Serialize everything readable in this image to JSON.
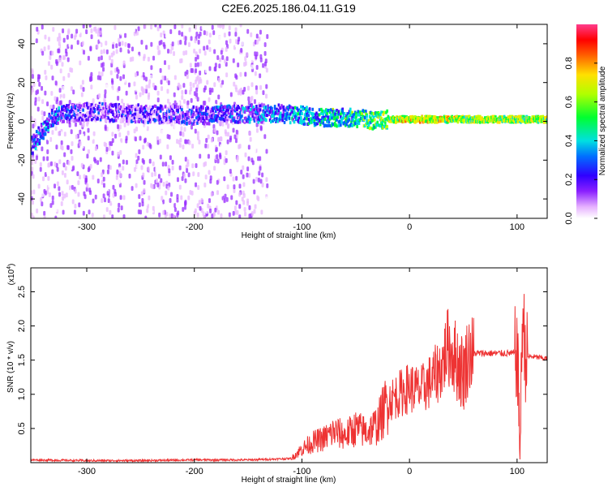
{
  "figure_title": "C2E6.2025.186.04.11.G19",
  "chart_data": [
    {
      "type": "heatmap",
      "title": "C2E6.2025.186.04.11.G19",
      "xlabel": "Height of straight line (km)",
      "ylabel": "Frequency (Hz)",
      "xlim": [
        -352,
        128
      ],
      "ylim": [
        -50,
        50
      ],
      "xticks": [
        -300,
        -200,
        -100,
        0,
        100
      ],
      "yticks": [
        -40,
        -20,
        0,
        20,
        40
      ],
      "colorbar": {
        "label": "Normalized spectral amplitude",
        "range": [
          0.0,
          1.0
        ],
        "ticks": [
          "0.0",
          "0.2",
          "0.4",
          "0.6",
          "0.8"
        ],
        "colormap": [
          "#ffffff",
          "#e8b8ff",
          "#9a30ff",
          "#4000ff",
          "#0060ff",
          "#00e0e0",
          "#00ff40",
          "#c0ff00",
          "#ffe000",
          "#ff6000",
          "#ff0000",
          "#ff40a0"
        ]
      },
      "ridge": {
        "description_free": true,
        "x": [
          -350,
          -340,
          -330,
          -300,
          -250,
          -200,
          -150,
          -120,
          -100,
          -80,
          -60,
          -40,
          -30,
          -20,
          0,
          50,
          100,
          128
        ],
        "freq": [
          -12,
          -4,
          3,
          5,
          4,
          3,
          4,
          4,
          3,
          2,
          2,
          1,
          0,
          1,
          1,
          1,
          1,
          1
        ],
        "amplitude": [
          0.3,
          0.35,
          0.3,
          0.2,
          0.2,
          0.25,
          0.3,
          0.35,
          0.4,
          0.45,
          0.45,
          0.5,
          0.55,
          0.6,
          0.65,
          0.6,
          0.6,
          0.6
        ]
      },
      "grid": false
    },
    {
      "type": "line",
      "xlabel": "Height of straight line (km)",
      "ylabel": "SNR (10 * v/v)",
      "y_multiplier_label": "(x10",
      "y_multiplier_exp": "4",
      "xlim": [
        -352,
        128
      ],
      "ylim": [
        0,
        2.85
      ],
      "xticks": [
        -300,
        -200,
        -100,
        0,
        100
      ],
      "yticks": [
        0.5,
        1.0,
        1.5,
        2.0,
        2.5
      ],
      "ytick_labels": [
        "0.5",
        "1.0",
        "1.5",
        "2.0",
        "2.5"
      ],
      "color": "#ee3333",
      "series": [
        {
          "x": [
            -352,
            -300,
            -250,
            -200,
            -150,
            -110,
            -100,
            -90,
            -80,
            -70,
            -60,
            -50,
            -40,
            -30,
            -20,
            -10,
            0,
            10,
            20,
            30,
            35,
            40,
            45,
            50,
            55,
            60,
            80,
            100,
            103,
            105,
            108,
            115,
            128
          ],
          "y": [
            0.04,
            0.03,
            0.03,
            0.04,
            0.04,
            0.06,
            0.2,
            0.3,
            0.35,
            0.45,
            0.4,
            0.5,
            0.45,
            0.55,
            0.9,
            1.0,
            1.1,
            1.05,
            1.2,
            1.4,
            1.7,
            1.6,
            1.45,
            1.3,
            1.6,
            1.6,
            1.6,
            1.6,
            0.3,
            2.2,
            1.55,
            1.55,
            1.52
          ]
        }
      ],
      "grid": false
    }
  ]
}
